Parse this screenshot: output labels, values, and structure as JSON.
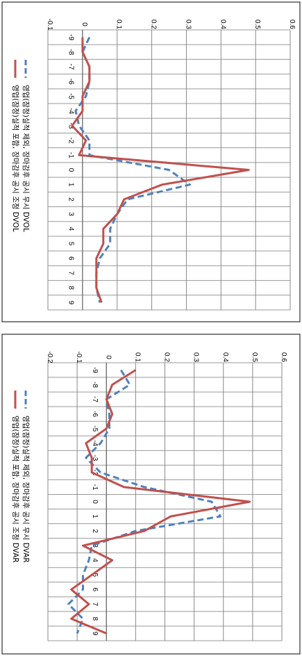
{
  "chart_data": [
    {
      "type": "line",
      "categories": [
        "-9",
        "-8",
        "-7",
        "-6",
        "-5",
        "-4",
        "-3",
        "-2",
        "-1",
        "0",
        "1",
        "2",
        "3",
        "4",
        "5",
        "6",
        "7",
        "8",
        "9"
      ],
      "ylim": [
        -0.1,
        0.6
      ],
      "yticks": [
        "-0.1",
        "0",
        "0.1",
        "0.2",
        "0.3",
        "0.4",
        "0.5",
        "0.6"
      ],
      "grid": true,
      "legend_position": "left",
      "series": [
        {
          "name": "영업(잠정)실적 제외, 장마감후 공시 무시 DVOL",
          "color": "#4F81BD",
          "dash": true,
          "values": [
            0.02,
            0.0,
            0.02,
            0.02,
            0.01,
            -0.02,
            -0.01,
            0.02,
            0.02,
            0.25,
            0.31,
            0.13,
            0.1,
            0.08,
            0.08,
            0.05,
            0.04,
            0.04,
            0.05
          ]
        },
        {
          "name": "영업(잠정)실적 포함, 장마감후 공시 조정 DVOL",
          "color": "#C0504D",
          "dash": false,
          "values": [
            0.0,
            0.0,
            0.02,
            0.02,
            0.0,
            0.0,
            -0.03,
            0.01,
            -0.01,
            0.48,
            0.23,
            0.12,
            0.1,
            0.06,
            0.06,
            0.04,
            0.04,
            0.04,
            0.055
          ]
        }
      ]
    },
    {
      "type": "line",
      "categories": [
        "-9",
        "-8",
        "-7",
        "-6",
        "-5",
        "-4",
        "-3",
        "-2",
        "-1",
        "0",
        "1",
        "2",
        "3",
        "4",
        "5",
        "6",
        "7",
        "8",
        "9"
      ],
      "ylim": [
        -0.2,
        0.6
      ],
      "yticks": [
        "-0.2",
        "-0.1",
        "0",
        "0.1",
        "0.2",
        "0.3",
        "0.4",
        "0.5",
        "0.6"
      ],
      "grid": true,
      "legend_position": "left",
      "series": [
        {
          "name": "영업(잠정)실적 제외, 장마감후 공시 무시 DVAR",
          "color": "#4F81BD",
          "dash": true,
          "values": [
            0.05,
            0.08,
            0.0,
            0.01,
            0.01,
            -0.02,
            -0.07,
            -0.02,
            0.13,
            0.36,
            0.39,
            0.1,
            -0.05,
            -0.06,
            -0.08,
            -0.08,
            -0.13,
            -0.08,
            -0.1
          ]
        },
        {
          "name": "영업(잠정)실적 포함, 장마감후 공시 조정 DVAR",
          "color": "#C0504D",
          "dash": false,
          "values": [
            0.1,
            0.02,
            0.0,
            0.02,
            0.0,
            -0.07,
            -0.05,
            -0.05,
            0.06,
            0.49,
            0.22,
            0.13,
            -0.08,
            0.02,
            -0.05,
            -0.12,
            -0.06,
            -0.12,
            0.0
          ]
        }
      ]
    }
  ]
}
